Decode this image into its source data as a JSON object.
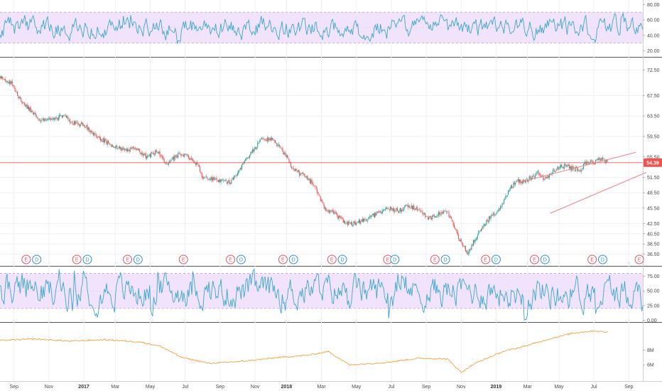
{
  "chart_data": {
    "type": "line",
    "panes": {
      "rsi_top": {
        "ylim": [
          14,
          84
        ],
        "ticks": [
          "80.00",
          "60.00",
          "40.00",
          "20.00"
        ],
        "band": [
          30,
          70
        ],
        "midline": 50,
        "color": "#3aa7c9",
        "band_color": "#f1e3fb"
      },
      "price": {
        "ylim": [
          34.5,
          74.5
        ],
        "ticks": [
          "72.50",
          "67.50",
          "63.50",
          "59.50",
          "55.50",
          "51.50",
          "48.50",
          "45.50",
          "42.50",
          "40.50",
          "38.50",
          "36.50"
        ],
        "last_price": 54.39,
        "last_price_label": "54.39",
        "up_color": "#26a69a",
        "down_color": "#ef5350",
        "path": [
          {
            "x": 0,
            "y": 71.0
          },
          {
            "x": 3,
            "y": 70.2
          },
          {
            "x": 6,
            "y": 66.5
          },
          {
            "x": 9,
            "y": 64.4
          },
          {
            "x": 12,
            "y": 62.5
          },
          {
            "x": 15,
            "y": 63.0
          },
          {
            "x": 18,
            "y": 63.5
          },
          {
            "x": 21,
            "y": 62.2
          },
          {
            "x": 24,
            "y": 61.8
          },
          {
            "x": 27,
            "y": 60.0
          },
          {
            "x": 30,
            "y": 58.5
          },
          {
            "x": 33,
            "y": 57.5
          },
          {
            "x": 36,
            "y": 56.8
          },
          {
            "x": 39,
            "y": 57.2
          },
          {
            "x": 42,
            "y": 55.5
          },
          {
            "x": 45,
            "y": 56.6
          },
          {
            "x": 48,
            "y": 54.0
          },
          {
            "x": 51,
            "y": 56.0
          },
          {
            "x": 54,
            "y": 55.5
          },
          {
            "x": 57,
            "y": 53.5
          },
          {
            "x": 58,
            "y": 51.5
          },
          {
            "x": 62,
            "y": 51.0
          },
          {
            "x": 66,
            "y": 50.5
          },
          {
            "x": 69,
            "y": 53.5
          },
          {
            "x": 72,
            "y": 56.5
          },
          {
            "x": 75,
            "y": 58.8
          },
          {
            "x": 78,
            "y": 59.2
          },
          {
            "x": 81,
            "y": 56.5
          },
          {
            "x": 84,
            "y": 53.0
          },
          {
            "x": 87,
            "y": 51.8
          },
          {
            "x": 90,
            "y": 50.0
          },
          {
            "x": 93,
            "y": 45.5
          },
          {
            "x": 96,
            "y": 44.3
          },
          {
            "x": 99,
            "y": 42.6
          },
          {
            "x": 102,
            "y": 42.5
          },
          {
            "x": 105,
            "y": 43.5
          },
          {
            "x": 108,
            "y": 44.5
          },
          {
            "x": 111,
            "y": 45.5
          },
          {
            "x": 114,
            "y": 45.0
          },
          {
            "x": 117,
            "y": 46.0
          },
          {
            "x": 120,
            "y": 45.0
          },
          {
            "x": 123,
            "y": 43.5
          },
          {
            "x": 126,
            "y": 44.5
          },
          {
            "x": 128,
            "y": 45.0
          },
          {
            "x": 130,
            "y": 42.0
          },
          {
            "x": 132,
            "y": 38.5
          },
          {
            "x": 134,
            "y": 36.8
          },
          {
            "x": 136,
            "y": 39.5
          },
          {
            "x": 138,
            "y": 41.8
          },
          {
            "x": 140,
            "y": 43.5
          },
          {
            "x": 142,
            "y": 44.5
          },
          {
            "x": 144,
            "y": 46.5
          },
          {
            "x": 146,
            "y": 49.5
          },
          {
            "x": 148,
            "y": 50.8
          },
          {
            "x": 150,
            "y": 50.5
          },
          {
            "x": 152,
            "y": 51.5
          },
          {
            "x": 154,
            "y": 52.5
          },
          {
            "x": 156,
            "y": 51.0
          },
          {
            "x": 158,
            "y": 52.5
          },
          {
            "x": 160,
            "y": 53.5
          },
          {
            "x": 162,
            "y": 53.8
          },
          {
            "x": 164,
            "y": 53.2
          },
          {
            "x": 166,
            "y": 53.0
          },
          {
            "x": 168,
            "y": 54.5
          },
          {
            "x": 170,
            "y": 54.4
          },
          {
            "x": 172,
            "y": 55.2
          },
          {
            "x": 174,
            "y": 54.4
          }
        ],
        "gaps": [
          57.5,
          92.5
        ]
      },
      "rsi_bottom": {
        "ylim": [
          -2,
          88
        ],
        "ticks": [
          "75.00",
          "50.00",
          "25.00",
          "0.00"
        ],
        "band": [
          20,
          80
        ],
        "midline": 50,
        "color": "#3aa7c9",
        "band_color": "#f1e3fb"
      },
      "volume_line": {
        "ylim": [
          4,
          11.5
        ],
        "ticks": [
          "8M",
          "6M"
        ],
        "color": "#f5a243",
        "path": [
          {
            "x": 0,
            "y": 9.3
          },
          {
            "x": 10,
            "y": 9.5
          },
          {
            "x": 20,
            "y": 9.2
          },
          {
            "x": 30,
            "y": 9.4
          },
          {
            "x": 40,
            "y": 9.1
          },
          {
            "x": 46,
            "y": 8.5
          },
          {
            "x": 52,
            "y": 7.0
          },
          {
            "x": 60,
            "y": 6.2
          },
          {
            "x": 70,
            "y": 6.5
          },
          {
            "x": 80,
            "y": 7.0
          },
          {
            "x": 88,
            "y": 7.3
          },
          {
            "x": 94,
            "y": 7.8
          },
          {
            "x": 100,
            "y": 6.0
          },
          {
            "x": 110,
            "y": 6.3
          },
          {
            "x": 120,
            "y": 6.9
          },
          {
            "x": 128,
            "y": 6.8
          },
          {
            "x": 132,
            "y": 5.0
          },
          {
            "x": 136,
            "y": 6.2
          },
          {
            "x": 144,
            "y": 7.8
          },
          {
            "x": 150,
            "y": 8.5
          },
          {
            "x": 158,
            "y": 9.6
          },
          {
            "x": 164,
            "y": 10.3
          },
          {
            "x": 170,
            "y": 10.6
          },
          {
            "x": 174,
            "y": 10.4
          }
        ]
      }
    },
    "x_axis": {
      "labels": [
        {
          "text": "Sep",
          "at": 4,
          "bold": false
        },
        {
          "text": "Nov",
          "at": 14,
          "bold": false
        },
        {
          "text": "2017",
          "at": 24,
          "bold": true
        },
        {
          "text": "Mar",
          "at": 33,
          "bold": false
        },
        {
          "text": "May",
          "at": 43,
          "bold": false
        },
        {
          "text": "Jul",
          "at": 53,
          "bold": false
        },
        {
          "text": "Sep",
          "at": 63,
          "bold": false
        },
        {
          "text": "Nov",
          "at": 73,
          "bold": false
        },
        {
          "text": "2018",
          "at": 82,
          "bold": true
        },
        {
          "text": "Mar",
          "at": 92,
          "bold": false
        },
        {
          "text": "May",
          "at": 102,
          "bold": false
        },
        {
          "text": "Jul",
          "at": 112,
          "bold": false
        },
        {
          "text": "Sep",
          "at": 122,
          "bold": false
        },
        {
          "text": "Nov",
          "at": 132,
          "bold": false
        },
        {
          "text": "2019",
          "at": 142,
          "bold": true
        },
        {
          "text": "Mar",
          "at": 151,
          "bold": false
        },
        {
          "text": "May",
          "at": 160,
          "bold": false
        },
        {
          "text": "Jul",
          "at": 170,
          "bold": false
        },
        {
          "text": "Sep",
          "at": 180,
          "bold": false
        }
      ]
    },
    "events": [
      {
        "kind": "E",
        "at": 7.5
      },
      {
        "kind": "D",
        "at": 10.5
      },
      {
        "kind": "E",
        "at": 22
      },
      {
        "kind": "D",
        "at": 25
      },
      {
        "kind": "E",
        "at": 36.5
      },
      {
        "kind": "D",
        "at": 39.5
      },
      {
        "kind": "E",
        "at": 52.5
      },
      {
        "kind": "E",
        "at": 66
      },
      {
        "kind": "D",
        "at": 69
      },
      {
        "kind": "E",
        "at": 81
      },
      {
        "kind": "D",
        "at": 84
      },
      {
        "kind": "E",
        "at": 95
      },
      {
        "kind": "D",
        "at": 98
      },
      {
        "kind": "E",
        "at": 111
      },
      {
        "kind": "D",
        "at": 113
      },
      {
        "kind": "E",
        "at": 124.5
      },
      {
        "kind": "D",
        "at": 127.5
      },
      {
        "kind": "E",
        "at": 139
      },
      {
        "kind": "D",
        "at": 142
      },
      {
        "kind": "E",
        "at": 153
      },
      {
        "kind": "D",
        "at": 156
      },
      {
        "kind": "E",
        "at": 169.5
      },
      {
        "kind": "D",
        "at": 172.5
      },
      {
        "kind": "E",
        "at": 183
      }
    ],
    "event_colors": {
      "E": "#e05563",
      "D": "#2f8fd8"
    },
    "channel": {
      "upper": [
        {
          "x": 148.5,
          "y": 50.5
        },
        {
          "x": 182,
          "y": 56.4
        }
      ],
      "lower": [
        {
          "x": 157.5,
          "y": 44.5
        },
        {
          "x": 185,
          "y": 52.5
        }
      ],
      "color": "#f08080"
    }
  }
}
